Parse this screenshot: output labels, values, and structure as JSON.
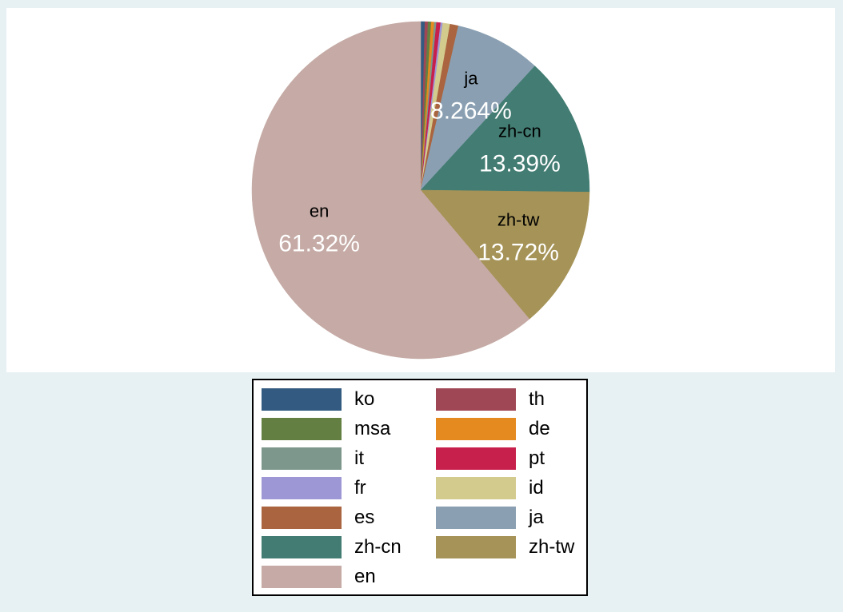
{
  "chart_data": {
    "type": "pie",
    "title": "",
    "slices": [
      {
        "name": "ko",
        "value": 0.4,
        "color": "#335a80"
      },
      {
        "name": "th",
        "value": 0.3,
        "color": "#a04755"
      },
      {
        "name": "msa",
        "value": 0.3,
        "color": "#637f41"
      },
      {
        "name": "de",
        "value": 0.3,
        "color": "#e48a1e"
      },
      {
        "name": "it",
        "value": 0.2,
        "color": "#7d978c"
      },
      {
        "name": "pt",
        "value": 0.4,
        "color": "#c8204d"
      },
      {
        "name": "fr",
        "value": 0.2,
        "color": "#9e97d6"
      },
      {
        "name": "id",
        "value": 0.7,
        "color": "#d3cb8d"
      },
      {
        "name": "es",
        "value": 0.8,
        "color": "#aa643f"
      },
      {
        "name": "ja",
        "value": 8.264,
        "label": "ja",
        "value_label": "8.264%",
        "color": "#8aa0b2"
      },
      {
        "name": "zh-cn",
        "value": 13.39,
        "label": "zh-cn",
        "value_label": "13.39%",
        "color": "#427c72"
      },
      {
        "name": "zh-tw",
        "value": 13.72,
        "label": "zh-tw",
        "value_label": "13.72%",
        "color": "#a59357"
      },
      {
        "name": "en",
        "value": 61.32,
        "label": "en",
        "value_label": "61.32%",
        "color": "#c5aaa5"
      }
    ],
    "legend": {
      "placement": "bottom",
      "columns": 2,
      "items": [
        "ko",
        "th",
        "msa",
        "de",
        "it",
        "pt",
        "fr",
        "id",
        "es",
        "ja",
        "zh-cn",
        "zh-tw",
        "en"
      ]
    }
  }
}
